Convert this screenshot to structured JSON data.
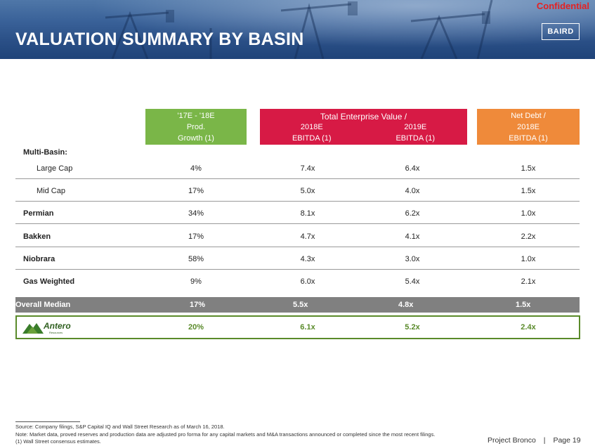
{
  "header": {
    "title": "VALUATION SUMMARY BY BASIN",
    "confidential": "Confidential",
    "logo": "BAIRD"
  },
  "columns": {
    "growth": {
      "line1": "'17E - '18E",
      "line2": "Prod.",
      "line3": "Growth (1)"
    },
    "tev": {
      "top": "Total Enterprise Value /",
      "col1_line1": "2018E",
      "col1_line2": "EBITDA (1)",
      "col2_line1": "2019E",
      "col2_line2": "EBITDA (1)"
    },
    "netdebt": {
      "line1": "Net Debt /",
      "line2": "2018E",
      "line3": "EBITDA (1)"
    }
  },
  "section_label": "Multi-Basin:",
  "rows": [
    {
      "label": "Large Cap",
      "growth": "4%",
      "tev2018": "7.4x",
      "tev2019": "6.4x",
      "netdebt": "1.5x"
    },
    {
      "label": "Mid Cap",
      "growth": "17%",
      "tev2018": "5.0x",
      "tev2019": "4.0x",
      "netdebt": "1.5x"
    },
    {
      "label": "Permian",
      "growth": "34%",
      "tev2018": "8.1x",
      "tev2019": "6.2x",
      "netdebt": "1.0x"
    },
    {
      "label": "Bakken",
      "growth": "17%",
      "tev2018": "4.7x",
      "tev2019": "4.1x",
      "netdebt": "2.2x"
    },
    {
      "label": "Niobrara",
      "growth": "58%",
      "tev2018": "4.3x",
      "tev2019": "3.0x",
      "netdebt": "1.0x"
    },
    {
      "label": "Gas Weighted",
      "growth": "9%",
      "tev2018": "6.0x",
      "tev2019": "5.4x",
      "netdebt": "2.1x"
    }
  ],
  "median": {
    "label": "Overall Median",
    "growth": "17%",
    "tev2018": "5.5x",
    "tev2019": "4.8x",
    "netdebt": "1.5x"
  },
  "antero": {
    "logo_text": "Antero",
    "logo_subtext": "Resources",
    "growth": "20%",
    "tev2018": "6.1x",
    "tev2019": "5.2x",
    "netdebt": "2.4x"
  },
  "footnotes": {
    "source": "Source: Company filings, S&P Capital IQ and Wall Street Research as of March 16, 2018.",
    "note": "Note: Market data, proved reserves and production data are adjusted pro forma for any capital markets and M&A transactions announced or completed since the most recent filings.",
    "fn1": "(1)     Wall Street consensus estimates."
  },
  "page": {
    "project": "Project Bronco",
    "separator": "|",
    "page": "Page 19"
  }
}
